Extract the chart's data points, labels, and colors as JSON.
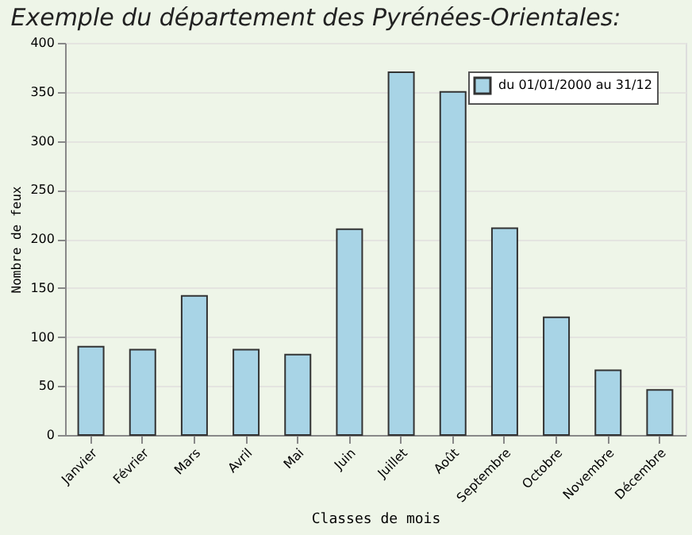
{
  "chart_data": {
    "type": "bar",
    "title": "Exemple du département des Pyrénées-Orientales:",
    "xlabel": "Classes de mois",
    "ylabel": "Nombre de feux",
    "categories": [
      "Janvier",
      "Février",
      "Mars",
      "Avril",
      "Mai",
      "Juin",
      "Juillet",
      "Août",
      "Septembre",
      "Octobre",
      "Novembre",
      "Décembre"
    ],
    "series": [
      {
        "name": "du 01/01/2000 au 31/12",
        "color": "#a8d4e6",
        "values": [
          90,
          87,
          142,
          87,
          82,
          210,
          370,
          350,
          211,
          120,
          66,
          46
        ]
      }
    ],
    "ylim": [
      0,
      400
    ],
    "yticks": [
      0,
      50,
      100,
      150,
      200,
      250,
      300,
      350,
      400
    ],
    "grid": "y",
    "legend": "top right"
  }
}
